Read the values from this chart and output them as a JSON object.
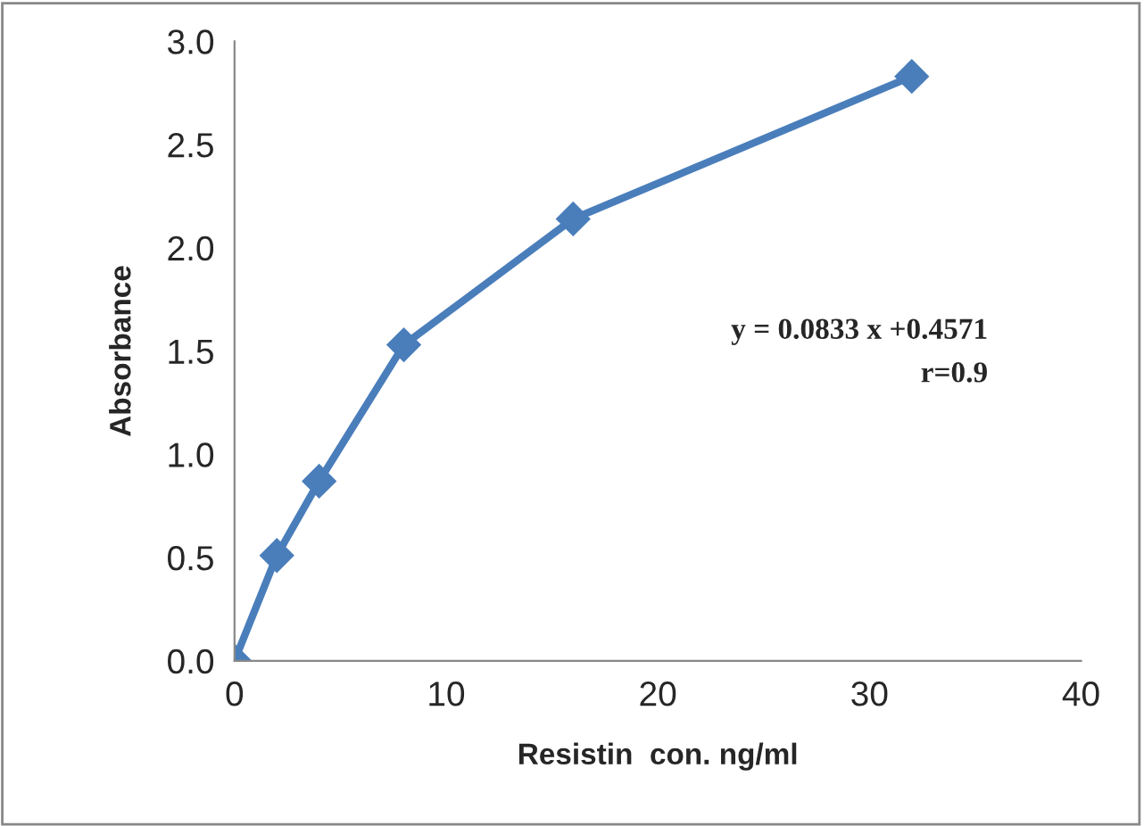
{
  "chart_data": {
    "type": "line",
    "xlabel": "Resistin  con. ng/ml",
    "ylabel": "Absorbance",
    "x": [
      0,
      2,
      4,
      8,
      16,
      32
    ],
    "series": [
      {
        "color": "#4a7ebb",
        "values": [
          0,
          0.51,
          0.87,
          1.53,
          2.14,
          2.83
        ]
      }
    ],
    "xlim": [
      0,
      40
    ],
    "xticks": [
      0,
      10,
      20,
      30,
      40
    ],
    "ylim": [
      0,
      3.0
    ],
    "yticks": [
      {
        "value": 0,
        "label": "0.0"
      },
      {
        "value": 0.5,
        "label": "0.5"
      },
      {
        "value": 1,
        "label": "1.0"
      },
      {
        "value": 1.5,
        "label": "1.5"
      },
      {
        "value": 2,
        "label": "2.0"
      },
      {
        "value": 2.5,
        "label": "2.5"
      },
      {
        "value": 3,
        "label": "3.0"
      }
    ],
    "annotations": [
      "y = 0.0833 x +0.4571",
      "r=0.9"
    ],
    "marker": "diamond",
    "line_style": "solid",
    "grid": false,
    "legend": false
  }
}
